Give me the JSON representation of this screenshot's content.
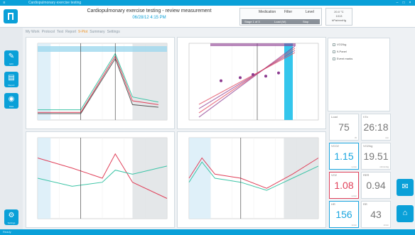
{
  "header": {
    "title": "Cardiopulmonary exercise testing - review measurement",
    "subtitle": "06/28/12 4:15 PM",
    "panel": {
      "col1": "Medication",
      "col2": "Filter",
      "col3": "Level",
      "strip": [
        "Stage 1 of 3",
        "Load (W)",
        "Stop"
      ]
    },
    "info": [
      "20.0 °C",
      "1013",
      "hPa/mmHg"
    ]
  },
  "breadcrumb": {
    "items": [
      "My Work",
      "Protocol",
      "Test",
      "Report",
      "9-Plot",
      "Summary",
      "Settings"
    ],
    "active_index": 4
  },
  "sidebar": {
    "items": [
      {
        "icon": "pencil-icon",
        "label": "Edit"
      },
      {
        "icon": "document-icon",
        "label": "Report"
      },
      {
        "icon": "database-icon",
        "label": "Data"
      }
    ],
    "settings_label": "Settings"
  },
  "legend": {
    "items": [
      "VO2/kg",
      "9-Panel",
      "Event marks"
    ]
  },
  "tiles": [
    {
      "label": "Load",
      "value": "75",
      "unit": "W",
      "style": "grey"
    },
    {
      "label": "t Ex",
      "value": "26:18",
      "unit": "min",
      "style": "grey"
    },
    {
      "label": "VCO2",
      "value": "1.15",
      "unit": "L/min",
      "style": "blue"
    },
    {
      "label": "VO2/kg",
      "value": "19.51",
      "unit": "ml/min/kg",
      "style": "grey"
    },
    {
      "label": "VO2",
      "value": "1.08",
      "unit": "L/min",
      "style": "red"
    },
    {
      "label": "RER",
      "value": "0.94",
      "unit": "",
      "style": "grey"
    },
    {
      "label": "HR",
      "value": "156",
      "unit": "1/min",
      "style": "blue"
    },
    {
      "label": "RR",
      "value": "43",
      "unit": "1/min",
      "style": "grey"
    }
  ],
  "right_buttons": [
    {
      "icon": "chat-icon"
    },
    {
      "icon": "home-icon"
    }
  ],
  "titlebar": {
    "text": "Cardiopulmonary exercise testing"
  },
  "statusbar": {
    "text": "Ready"
  },
  "colors": {
    "accent": "#0aa0d8",
    "red": "#e0415a",
    "teal": "#3cc4a6",
    "purple": "#8b3a8f"
  },
  "chart_data": [
    {
      "type": "line",
      "panel": "top-left",
      "xlim": [
        0,
        30
      ],
      "series": [
        {
          "color": "#555555",
          "x": [
            0,
            10,
            18,
            22,
            28
          ],
          "y": [
            5,
            5,
            48,
            12,
            10
          ]
        },
        {
          "color": "#3cc4a6",
          "x": [
            0,
            10,
            18,
            22,
            28
          ],
          "y": [
            8,
            8,
            52,
            18,
            14
          ]
        },
        {
          "color": "#e0415a",
          "x": [
            0,
            10,
            18,
            22,
            28
          ],
          "y": [
            6,
            6,
            50,
            15,
            12
          ]
        }
      ]
    },
    {
      "type": "scatter",
      "panel": "top-right",
      "series": [
        {
          "color": "#8b3a8f",
          "points": [
            [
              5,
              24
            ],
            [
              8,
              22
            ],
            [
              10,
              20
            ],
            [
              12,
              21
            ],
            [
              14,
              19
            ]
          ]
        }
      ]
    },
    {
      "type": "line",
      "panel": "bottom-left",
      "xlim": [
        0,
        30
      ],
      "series": [
        {
          "color": "#e0415a",
          "x": [
            0,
            8,
            15,
            18,
            22,
            30
          ],
          "y": [
            30,
            25,
            20,
            32,
            18,
            10
          ]
        },
        {
          "color": "#3cc4a6",
          "x": [
            0,
            8,
            15,
            18,
            22,
            30
          ],
          "y": [
            20,
            16,
            18,
            24,
            22,
            26
          ]
        }
      ]
    },
    {
      "type": "line",
      "panel": "bottom-right",
      "xlim": [
        0,
        30
      ],
      "series": [
        {
          "color": "#e0415a",
          "x": [
            0,
            3,
            6,
            12,
            18,
            24,
            30
          ],
          "y": [
            20,
            30,
            22,
            20,
            15,
            22,
            30
          ]
        },
        {
          "color": "#3cc4a6",
          "x": [
            0,
            3,
            6,
            12,
            18,
            24,
            30
          ],
          "y": [
            18,
            28,
            20,
            18,
            14,
            20,
            26
          ]
        }
      ]
    }
  ]
}
